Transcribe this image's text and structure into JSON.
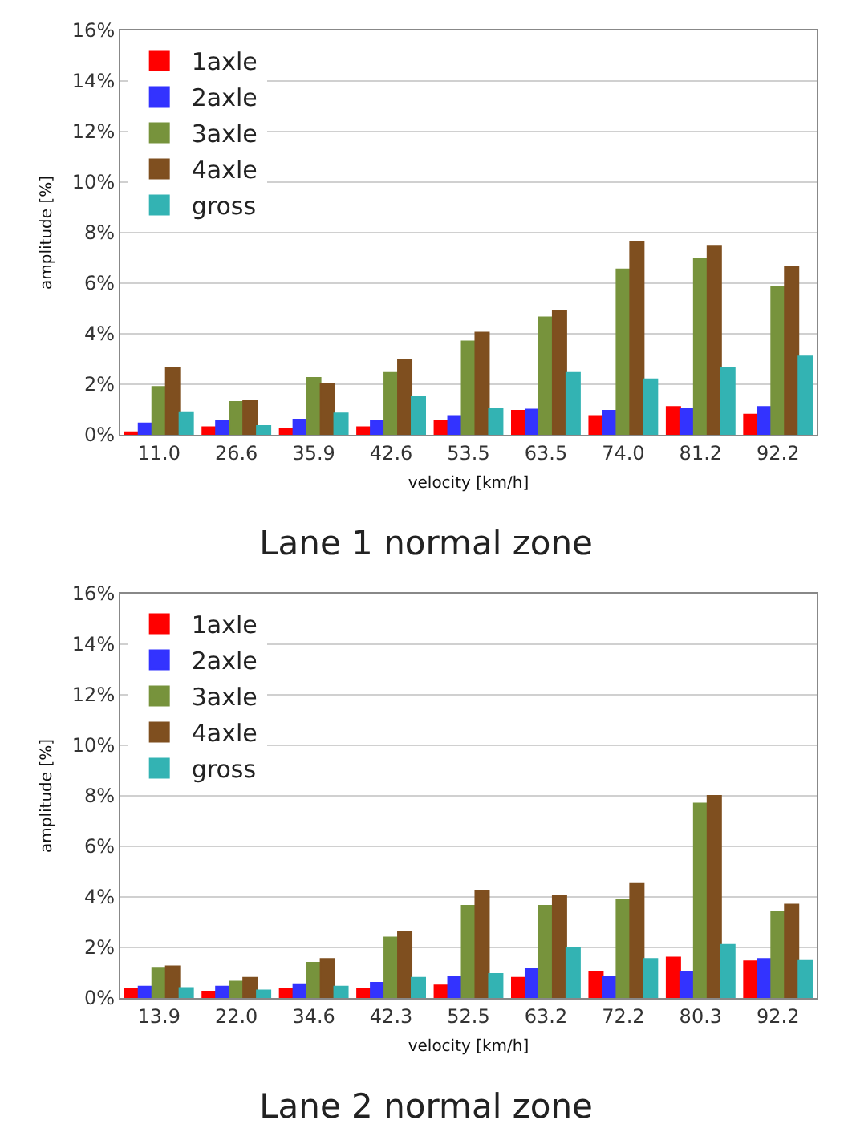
{
  "chart_data": [
    {
      "type": "bar",
      "title": "Lane 1 normal zone",
      "xlabel": "velocity [km/h]",
      "ylabel": "amplitude [%]",
      "categories": [
        "11.0",
        "26.6",
        "35.9",
        "42.6",
        "53.5",
        "63.5",
        "74.0",
        "81.2",
        "92.2"
      ],
      "ylim": [
        0,
        16
      ],
      "yticks": [
        {
          "value": 0,
          "label": "0%"
        },
        {
          "value": 2,
          "label": "2%"
        },
        {
          "value": 4,
          "label": "4%"
        },
        {
          "value": 6,
          "label": "6%"
        },
        {
          "value": 8,
          "label": "8%"
        },
        {
          "value": 10,
          "label": "10%"
        },
        {
          "value": 12,
          "label": "12%"
        },
        {
          "value": 14,
          "label": "14%"
        },
        {
          "value": 16,
          "label": "16%"
        }
      ],
      "grid": "y",
      "legend": "top left",
      "series": [
        {
          "name": "1axle",
          "color": "#ff0000",
          "values": [
            0.1,
            0.3,
            0.25,
            0.3,
            0.55,
            0.95,
            0.75,
            1.1,
            0.8
          ]
        },
        {
          "name": "2axle",
          "color": "#3333ff",
          "values": [
            0.45,
            0.55,
            0.6,
            0.55,
            0.75,
            1.0,
            0.95,
            1.05,
            1.1
          ]
        },
        {
          "name": "3axle",
          "color": "#77933c",
          "values": [
            1.9,
            1.3,
            2.25,
            2.45,
            3.7,
            4.65,
            6.55,
            6.95,
            5.85
          ]
        },
        {
          "name": "4axle",
          "color": "#7f4f1f",
          "values": [
            2.65,
            1.35,
            2.0,
            2.95,
            4.05,
            4.9,
            7.65,
            7.45,
            6.65
          ]
        },
        {
          "name": "gross",
          "color": "#33b3b3",
          "values": [
            0.9,
            0.35,
            0.85,
            1.5,
            1.05,
            2.45,
            2.2,
            2.65,
            3.1
          ]
        }
      ]
    },
    {
      "type": "bar",
      "title": "Lane 2 normal zone",
      "xlabel": "velocity [km/h]",
      "ylabel": "amplitude [%]",
      "categories": [
        "13.9",
        "22.0",
        "34.6",
        "42.3",
        "52.5",
        "63.2",
        "72.2",
        "80.3",
        "92.2"
      ],
      "ylim": [
        0,
        16
      ],
      "yticks": [
        {
          "value": 0,
          "label": "0%"
        },
        {
          "value": 2,
          "label": "2%"
        },
        {
          "value": 4,
          "label": "4%"
        },
        {
          "value": 6,
          "label": "6%"
        },
        {
          "value": 8,
          "label": "8%"
        },
        {
          "value": 10,
          "label": "10%"
        },
        {
          "value": 12,
          "label": "12%"
        },
        {
          "value": 14,
          "label": "14%"
        },
        {
          "value": 16,
          "label": "16%"
        }
      ],
      "grid": "y",
      "legend": "top left",
      "series": [
        {
          "name": "1axle",
          "color": "#ff0000",
          "values": [
            0.35,
            0.25,
            0.35,
            0.35,
            0.5,
            0.8,
            1.05,
            1.6,
            1.45
          ]
        },
        {
          "name": "2axle",
          "color": "#3333ff",
          "values": [
            0.45,
            0.45,
            0.55,
            0.6,
            0.85,
            1.15,
            0.85,
            1.05,
            1.55
          ]
        },
        {
          "name": "3axle",
          "color": "#77933c",
          "values": [
            1.2,
            0.65,
            1.4,
            2.4,
            3.65,
            3.65,
            3.9,
            7.7,
            3.4
          ]
        },
        {
          "name": "4axle",
          "color": "#7f4f1f",
          "values": [
            1.25,
            0.8,
            1.55,
            2.6,
            4.25,
            4.05,
            4.55,
            8.0,
            3.7
          ]
        },
        {
          "name": "gross",
          "color": "#33b3b3",
          "values": [
            0.4,
            0.3,
            0.45,
            0.8,
            0.95,
            2.0,
            1.55,
            2.1,
            1.5
          ]
        }
      ]
    }
  ]
}
